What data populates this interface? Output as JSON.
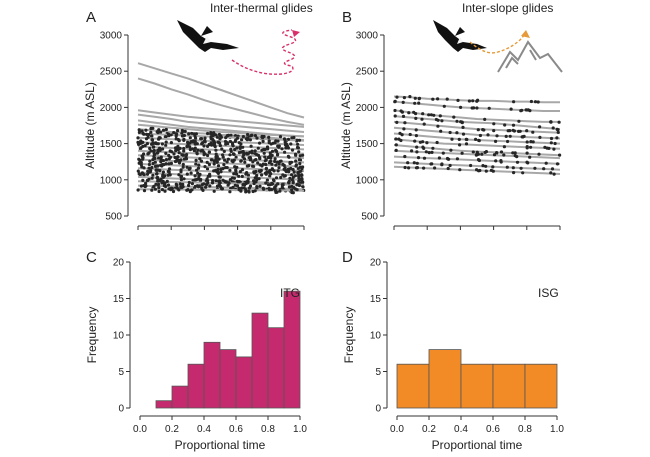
{
  "panels": {
    "A": {
      "letter": "A",
      "title": "Inter-thermal glides"
    },
    "B": {
      "letter": "B",
      "title": "Inter-slope glides"
    },
    "C": {
      "letter": "C",
      "tag": "ITG"
    },
    "D": {
      "letter": "D",
      "tag": "ISG"
    }
  },
  "colors": {
    "itg": "#c62a6e",
    "isg": "#f28a26",
    "trace": "#a8a8a8",
    "dots": "#262626",
    "axis": "#333333",
    "arrow_itg": "#d9306b",
    "arrow_isg": "#e69a3a"
  },
  "icons": {
    "bird": "condor-silhouette-icon",
    "mountain": "mountain-icon",
    "thermal_path": "zigzag-arrow-icon",
    "slope_path": "dashed-arrow-icon"
  },
  "chart_data": [
    {
      "type": "line",
      "panel": "A",
      "title": "Inter-thermal glides",
      "ylabel": "Altitude (m ASL)",
      "xlabel": "",
      "ylim": [
        500,
        3000
      ],
      "yticks": [
        "500",
        "1000",
        "1500",
        "2000",
        "2500",
        "3000"
      ],
      "x_tick_count": 6,
      "x": [
        0,
        0.1,
        0.2,
        0.3,
        0.4,
        0.5,
        0.6,
        0.7,
        0.8,
        0.9,
        1.0
      ],
      "series": [
        {
          "values": [
            2610,
            2540,
            2470,
            2400,
            2320,
            2240,
            2160,
            2080,
            2000,
            1920,
            1860
          ]
        },
        {
          "values": [
            2400,
            2330,
            2250,
            2180,
            2100,
            2030,
            1970,
            1910,
            1850,
            1800,
            1760
          ]
        },
        {
          "values": [
            1960,
            1930,
            1900,
            1870,
            1850,
            1830,
            1810,
            1790,
            1770,
            1750,
            1730
          ]
        },
        {
          "values": [
            1900,
            1870,
            1840,
            1800,
            1780,
            1760,
            1740,
            1720,
            1700,
            1680,
            1660
          ]
        },
        {
          "values": [
            1820,
            1790,
            1760,
            1730,
            1710,
            1690,
            1670,
            1650,
            1630,
            1610,
            1600
          ]
        },
        {
          "values": [
            1760,
            1740,
            1720,
            1700,
            1680,
            1660,
            1650,
            1630,
            1620,
            1610,
            1600
          ]
        },
        {
          "values": [
            1700,
            1680,
            1660,
            1650,
            1640,
            1620,
            1610,
            1600,
            1580,
            1560,
            1550
          ]
        },
        {
          "values": [
            1640,
            1630,
            1620,
            1610,
            1600,
            1590,
            1580,
            1570,
            1560,
            1550,
            1540
          ]
        },
        {
          "values": [
            1580,
            1570,
            1560,
            1550,
            1540,
            1530,
            1520,
            1510,
            1500,
            1490,
            1480
          ]
        },
        {
          "values": [
            1520,
            1510,
            1500,
            1490,
            1480,
            1470,
            1460,
            1450,
            1440,
            1430,
            1420
          ]
        },
        {
          "values": [
            1460,
            1450,
            1440,
            1430,
            1420,
            1410,
            1400,
            1390,
            1380,
            1370,
            1360
          ]
        },
        {
          "values": [
            1400,
            1390,
            1380,
            1370,
            1360,
            1350,
            1340,
            1330,
            1320,
            1310,
            1300
          ]
        },
        {
          "values": [
            1340,
            1330,
            1320,
            1310,
            1300,
            1290,
            1280,
            1270,
            1260,
            1250,
            1240
          ]
        },
        {
          "values": [
            1280,
            1270,
            1260,
            1250,
            1240,
            1230,
            1220,
            1210,
            1200,
            1190,
            1180
          ]
        },
        {
          "values": [
            1220,
            1210,
            1200,
            1190,
            1180,
            1170,
            1160,
            1150,
            1140,
            1130,
            1120
          ]
        },
        {
          "values": [
            1160,
            1150,
            1140,
            1130,
            1120,
            1110,
            1100,
            1090,
            1080,
            1070,
            1060
          ]
        },
        {
          "values": [
            1100,
            1090,
            1080,
            1070,
            1060,
            1050,
            1040,
            1030,
            1020,
            1010,
            1000
          ]
        },
        {
          "values": [
            1040,
            1030,
            1020,
            1010,
            1000,
            990,
            980,
            970,
            960,
            950,
            940
          ]
        },
        {
          "values": [
            980,
            975,
            970,
            965,
            960,
            955,
            950,
            945,
            940,
            935,
            930
          ]
        },
        {
          "values": [
            920,
            915,
            910,
            905,
            900,
            895,
            890,
            885,
            880,
            875,
            870
          ]
        },
        {
          "values": [
            870,
            868,
            866,
            864,
            862,
            860,
            858,
            856,
            854,
            852,
            850
          ]
        }
      ]
    },
    {
      "type": "line",
      "panel": "B",
      "title": "Inter-slope glides",
      "ylabel": "Altitude (m ASL)",
      "xlabel": "",
      "ylim": [
        500,
        3000
      ],
      "yticks": [
        "500",
        "1000",
        "1500",
        "2000",
        "2500",
        "3000"
      ],
      "x_tick_count": 6,
      "x": [
        0,
        0.1,
        0.2,
        0.3,
        0.4,
        0.5,
        0.6,
        0.7,
        0.8,
        0.9,
        1.0
      ],
      "series": [
        {
          "values": [
            2150,
            2140,
            2120,
            2110,
            2100,
            2090,
            2090,
            2080,
            2080,
            2070,
            2070
          ]
        },
        {
          "values": [
            2080,
            2060,
            2040,
            2020,
            2000,
            1990,
            1980,
            1970,
            1960,
            1950,
            1950
          ]
        },
        {
          "values": [
            1960,
            1930,
            1900,
            1880,
            1860,
            1840,
            1830,
            1820,
            1810,
            1800,
            1800
          ]
        },
        {
          "values": [
            1880,
            1860,
            1840,
            1820,
            1800,
            1790,
            1780,
            1760,
            1740,
            1720,
            1700
          ]
        },
        {
          "values": [
            1800,
            1780,
            1760,
            1740,
            1720,
            1700,
            1690,
            1680,
            1670,
            1660,
            1650
          ]
        },
        {
          "values": [
            1720,
            1700,
            1680,
            1660,
            1640,
            1620,
            1610,
            1600,
            1590,
            1580,
            1570
          ]
        },
        {
          "values": [
            1640,
            1620,
            1600,
            1580,
            1560,
            1550,
            1540,
            1530,
            1520,
            1510,
            1500
          ]
        },
        {
          "values": [
            1560,
            1540,
            1520,
            1500,
            1490,
            1480,
            1470,
            1460,
            1450,
            1440,
            1430
          ]
        },
        {
          "values": [
            1480,
            1460,
            1440,
            1420,
            1400,
            1390,
            1380,
            1370,
            1360,
            1350,
            1340
          ]
        },
        {
          "values": [
            1400,
            1390,
            1380,
            1370,
            1360,
            1350,
            1340,
            1330,
            1320,
            1310,
            1300
          ]
        },
        {
          "values": [
            1320,
            1310,
            1300,
            1290,
            1280,
            1270,
            1260,
            1250,
            1240,
            1230,
            1220
          ]
        },
        {
          "values": [
            1240,
            1230,
            1220,
            1210,
            1200,
            1190,
            1180,
            1170,
            1160,
            1150,
            1140
          ]
        },
        {
          "values": [
            1180,
            1170,
            1160,
            1150,
            1140,
            1130,
            1120,
            1110,
            1100,
            1090,
            1080
          ]
        }
      ]
    },
    {
      "type": "bar",
      "panel": "C",
      "tag": "ITG",
      "xlabel": "Proportional time",
      "ylabel": "Frequency",
      "ylim": [
        0,
        20
      ],
      "xlim": [
        0,
        1
      ],
      "yticks": [
        "0",
        "5",
        "10",
        "15",
        "20"
      ],
      "xticks": [
        "0.0",
        "0.2",
        "0.4",
        "0.6",
        "0.8",
        "1.0"
      ],
      "bin_edges": [
        0.1,
        0.2,
        0.3,
        0.4,
        0.5,
        0.6,
        0.7,
        0.8,
        0.9,
        1.0
      ],
      "values": [
        1,
        3,
        6,
        9,
        8,
        7,
        13,
        11,
        16
      ]
    },
    {
      "type": "bar",
      "panel": "D",
      "tag": "ISG",
      "xlabel": "Proportional time",
      "ylabel": "Frequency",
      "ylim": [
        0,
        20
      ],
      "xlim": [
        0,
        1
      ],
      "yticks": [
        "0",
        "5",
        "10",
        "15",
        "20"
      ],
      "xticks": [
        "0.0",
        "0.2",
        "0.4",
        "0.6",
        "0.8",
        "1.0"
      ],
      "bin_edges": [
        0.0,
        0.2,
        0.4,
        0.6,
        0.8,
        1.0
      ],
      "values": [
        6,
        8,
        6,
        6,
        6
      ]
    }
  ]
}
